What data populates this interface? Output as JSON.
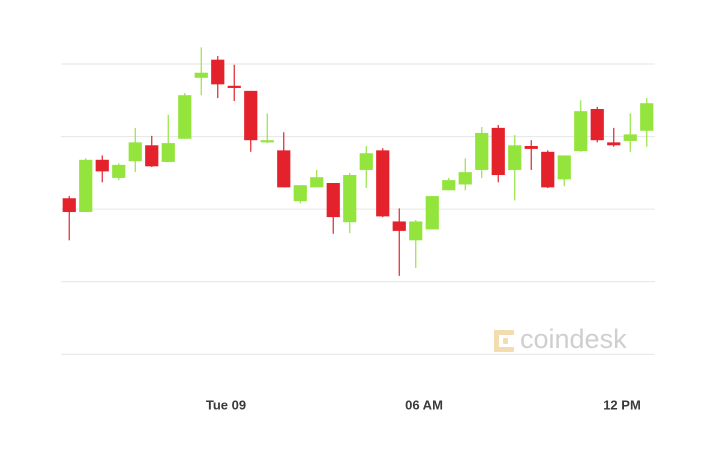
{
  "chart_data": {
    "type": "candlestick",
    "x": [
      0,
      1,
      2,
      3,
      4,
      5,
      6,
      7,
      8,
      9,
      10,
      11,
      12,
      13,
      14,
      15,
      16,
      17,
      18,
      19,
      20,
      21,
      22,
      23,
      24,
      25,
      26,
      27,
      28,
      29,
      30,
      31,
      32,
      33,
      34,
      35
    ],
    "open": [
      2.15,
      1.96,
      2.68,
      2.43,
      2.66,
      2.88,
      2.65,
      2.97,
      3.81,
      4.06,
      3.7,
      3.63,
      2.92,
      2.81,
      2.11,
      2.3,
      2.36,
      1.82,
      2.54,
      2.81,
      1.83,
      1.57,
      1.72,
      2.26,
      2.34,
      2.54,
      3.12,
      2.54,
      2.87,
      2.79,
      2.41,
      2.8,
      3.38,
      2.92,
      2.94,
      3.08
    ],
    "high": [
      2.18,
      2.7,
      2.74,
      2.63,
      3.12,
      3.01,
      3.3,
      3.6,
      4.23,
      4.11,
      3.99,
      3.63,
      3.32,
      3.06,
      2.33,
      2.54,
      2.36,
      2.5,
      2.87,
      2.84,
      2.01,
      1.85,
      2.18,
      2.43,
      2.7,
      3.13,
      3.16,
      3.02,
      2.95,
      2.81,
      2.74,
      3.5,
      3.41,
      3.12,
      3.32,
      3.53
    ],
    "low": [
      1.57,
      1.96,
      2.37,
      2.4,
      2.51,
      2.58,
      2.65,
      2.97,
      3.57,
      3.53,
      3.49,
      2.79,
      2.91,
      2.3,
      2.08,
      2.3,
      1.66,
      1.67,
      2.29,
      1.89,
      1.08,
      1.19,
      1.72,
      2.26,
      2.26,
      2.43,
      2.37,
      2.12,
      2.54,
      2.29,
      2.32,
      2.79,
      2.92,
      2.86,
      2.79,
      2.86
    ],
    "close": [
      1.96,
      2.68,
      2.52,
      2.61,
      2.92,
      2.59,
      2.91,
      3.57,
      3.88,
      3.72,
      3.67,
      2.95,
      2.95,
      2.3,
      2.33,
      2.44,
      1.89,
      2.47,
      2.77,
      1.9,
      1.7,
      1.83,
      2.18,
      2.4,
      2.51,
      3.05,
      2.47,
      2.88,
      2.83,
      2.3,
      2.74,
      3.35,
      2.95,
      2.88,
      3.03,
      3.46
    ],
    "up_color": "#94e43e",
    "down_color": "#e3222b",
    "xlim": [
      -0.5,
      35.5
    ],
    "xticks": [
      {
        "value": 9.5,
        "label": "Tue 09"
      },
      {
        "value": 21.5,
        "label": "06 AM"
      },
      {
        "value": 33.5,
        "label": "12 PM"
      }
    ],
    "ylim": [
      -0.3,
      4.4
    ],
    "grid_lines": [
      0,
      1,
      2,
      3,
      4
    ],
    "watermark": "coindesk"
  }
}
